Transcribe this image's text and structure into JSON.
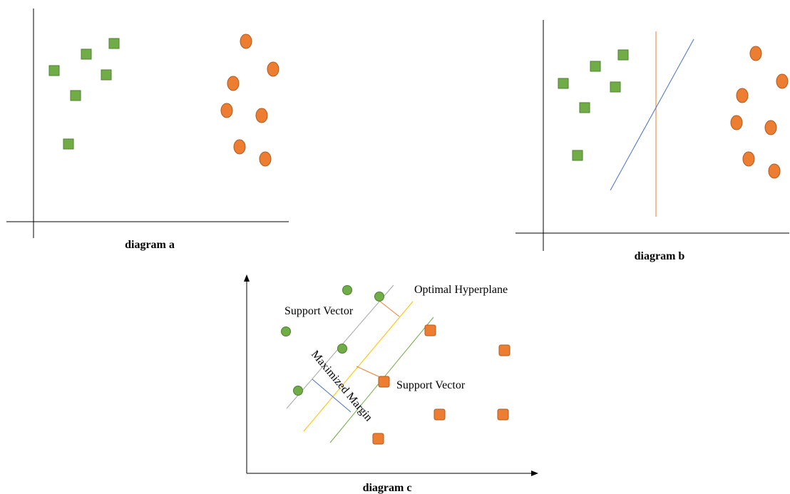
{
  "diagram_a": {
    "caption": "diagram a",
    "colors": {
      "class_a": "#70ad47",
      "class_b": "#ed7d31",
      "outline_a": "#507e32",
      "outline_b": "#ae5a21"
    }
  },
  "diagram_b": {
    "caption": "diagram b",
    "colors": {
      "separator_1": "#ed7d31",
      "separator_2": "#4472c4"
    }
  },
  "diagram_c": {
    "caption": "diagram c",
    "labels": {
      "optimal_hyperplane": "Optimal Hyperplane",
      "support_vector_top": "Support Vector",
      "support_vector_bottom": "Support Vector",
      "maximized_margin": "Maximized Margin"
    },
    "colors": {
      "boundary_upper": "#a5a5a5",
      "hyperplane": "#ffc000",
      "boundary_lower": "#70ad47",
      "margin_line": "#4472c4",
      "support_tick": "#ed7d31"
    }
  }
}
